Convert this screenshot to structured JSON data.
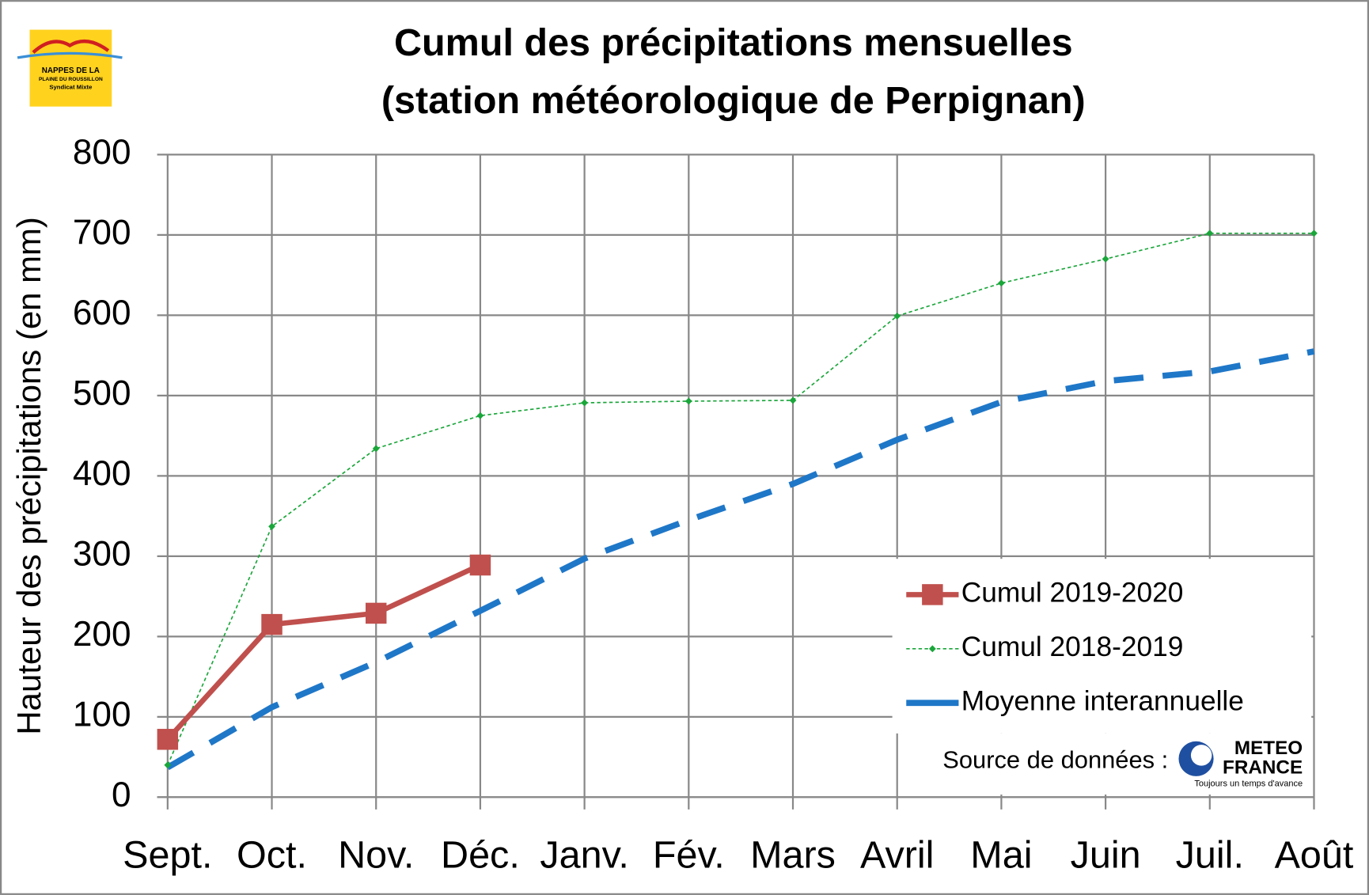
{
  "chart_data": {
    "type": "line",
    "title": [
      "Cumul des précipitations mensuelles",
      "(station météorologique de Perpignan)"
    ],
    "y_label": "Hauteur des précipitations (en mm)",
    "categories": [
      "Sept.",
      "Oct.",
      "Nov.",
      "Déc.",
      "Janv.",
      "Fév.",
      "Mars",
      "Avril",
      "Mai",
      "Juin",
      "Juil.",
      "Août"
    ],
    "series": [
      {
        "name": "Cumul 2019-2020",
        "color": "#c0504d",
        "style": "solid",
        "marker": "square",
        "values": [
          72,
          215,
          229,
          289,
          null,
          null,
          null,
          null,
          null,
          null,
          null,
          null
        ]
      },
      {
        "name": "Cumul 2018-2019",
        "color": "#1aa63a",
        "style": "dotted",
        "marker": "diamond",
        "values": [
          40,
          337,
          434,
          475,
          491,
          493,
          494,
          599,
          640,
          670,
          702,
          702
        ]
      },
      {
        "name": "Moyenne interannuelle",
        "color": "#1f77c8",
        "style": "dashed",
        "marker": "none",
        "values": [
          37,
          112,
          168,
          232,
          297,
          345,
          390,
          445,
          492,
          518,
          530,
          555
        ]
      }
    ],
    "ylim": [
      0,
      800
    ],
    "yticks": [
      0,
      100,
      200,
      300,
      400,
      500,
      600,
      700,
      800
    ],
    "grid": true,
    "source": "Source de données :",
    "logo_left": [
      "NAPPES DE LA",
      "PLAINE DU ROUSSILLON",
      "Syndicat Mixte"
    ],
    "logo_right": [
      "METEO",
      "FRANCE",
      "Toujours un temps d'avance"
    ]
  }
}
